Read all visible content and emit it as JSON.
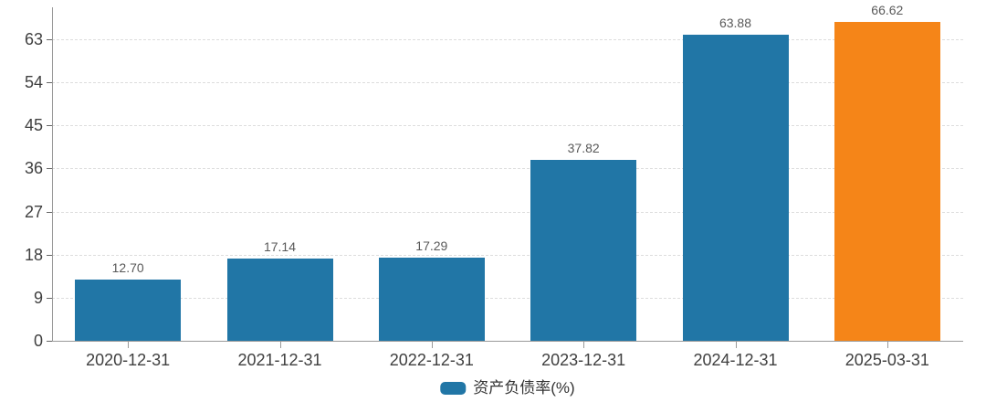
{
  "chart_data": {
    "type": "bar",
    "title": "",
    "xlabel": "",
    "ylabel": "",
    "categories": [
      "2020-12-31",
      "2021-12-31",
      "2022-12-31",
      "2023-12-31",
      "2024-12-31",
      "2025-03-31"
    ],
    "values": [
      12.7,
      17.14,
      17.29,
      37.82,
      63.88,
      66.62
    ],
    "value_labels": [
      "12.70",
      "17.14",
      "17.29",
      "37.82",
      "63.88",
      "66.62"
    ],
    "bar_colors": [
      "#2176A6",
      "#2176A6",
      "#2176A6",
      "#2176A6",
      "#2176A6",
      "#F58518"
    ],
    "yticks": [
      0,
      9,
      18,
      27,
      36,
      45,
      54,
      63
    ],
    "ylim": [
      0,
      69.7
    ],
    "grid": "horizontal-dashed",
    "legend": {
      "label": "资产负债率(%)",
      "swatch_color": "#2176A6",
      "position": "bottom-center"
    }
  }
}
